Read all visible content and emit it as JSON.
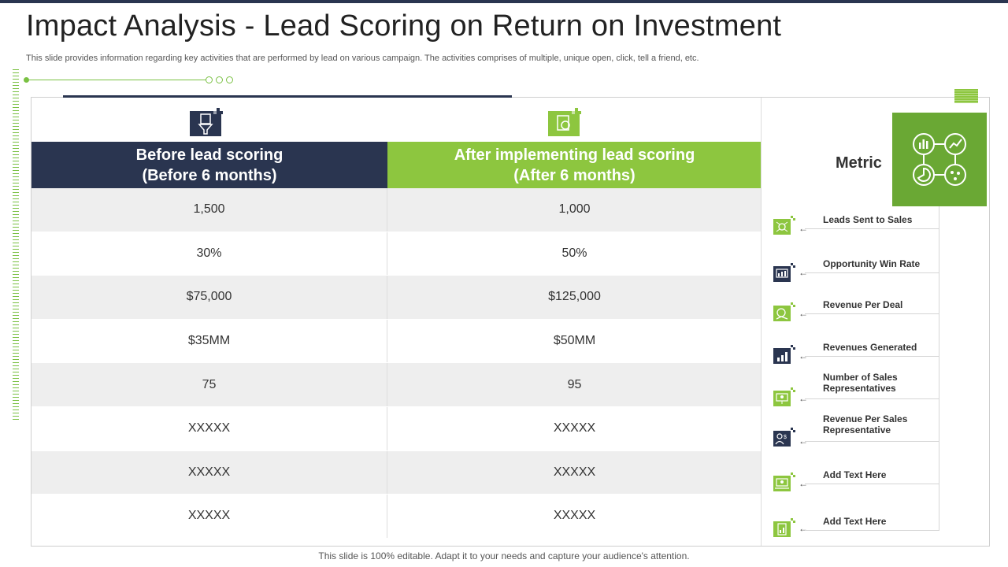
{
  "slide": {
    "title": "Impact Analysis - Lead Scoring on Return on Investment",
    "subtitle": "This slide provides information regarding key activities that are performed by lead on various campaign. The activities comprises of multiple, unique open, click, tell a friend, etc.",
    "footer": "This slide is 100% editable. Adapt it to your needs and capture your audience's attention."
  },
  "colors": {
    "navy": "#2a3550",
    "green": "#8dc63f",
    "dark_green": "#6aa834"
  },
  "columns": {
    "before": {
      "line1": "Before lead scoring",
      "line2": "(Before 6 months)",
      "icon": "funnel-document-icon"
    },
    "after": {
      "line1": "After implementing lead scoring",
      "line2": "(After 6 months)",
      "icon": "target-document-icon"
    }
  },
  "rows": [
    {
      "before": "1,500",
      "after": "1,000"
    },
    {
      "before": "30%",
      "after": "50%"
    },
    {
      "before": "$75,000",
      "after": "$125,000"
    },
    {
      "before": "$35MM",
      "after": "$50MM"
    },
    {
      "before": "75",
      "after": "95"
    },
    {
      "before": "XXXXX",
      "after": "XXXXX"
    },
    {
      "before": "XXXXX",
      "after": "XXXXX"
    },
    {
      "before": "XXXXX",
      "after": "XXXXX"
    }
  ],
  "metric": {
    "label": "Metric",
    "icon": "analytics-dashboard-icon",
    "items": [
      {
        "text": "Leads Sent to Sales",
        "icon": "network-icon"
      },
      {
        "text": "Opportunity Win Rate",
        "icon": "chart-board-icon"
      },
      {
        "text": "Revenue Per Deal",
        "icon": "handshake-dollar-icon"
      },
      {
        "text": "Revenues Generated",
        "icon": "bar-growth-icon"
      },
      {
        "text": "Number of Sales Representatives",
        "icon": "presentation-user-icon"
      },
      {
        "text": "Revenue Per Sales Representative",
        "icon": "person-dollar-icon"
      },
      {
        "text": "Add Text Here",
        "icon": "laptop-idea-icon"
      },
      {
        "text": "Add Text Here",
        "icon": "document-chart-icon"
      }
    ]
  }
}
